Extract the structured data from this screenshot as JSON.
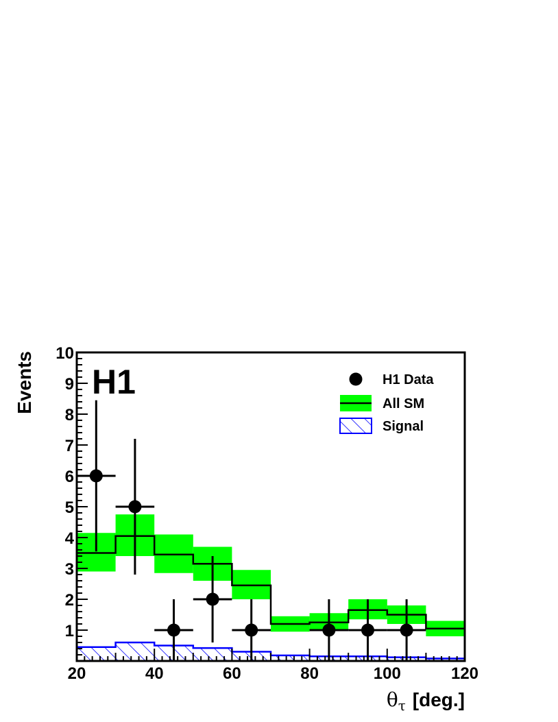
{
  "chart_data": {
    "type": "histogram",
    "experiment_label": "H1",
    "xlabel_symbol": "θ",
    "xlabel_subscript": "τ",
    "xlabel_unit": "[deg.]",
    "ylabel": "Events",
    "xlim": [
      20,
      120
    ],
    "ylim": [
      0,
      10
    ],
    "x_ticks": [
      20,
      40,
      60,
      80,
      100,
      120
    ],
    "y_ticks": [
      1,
      2,
      3,
      4,
      5,
      6,
      7,
      8,
      9,
      10
    ],
    "bin_edges": [
      20,
      30,
      40,
      50,
      60,
      70,
      80,
      90,
      100,
      110,
      120
    ],
    "legend": {
      "placement": "top-right",
      "entries": [
        {
          "key": "data",
          "label": "H1 Data"
        },
        {
          "key": "sm",
          "label": "All SM"
        },
        {
          "key": "signal",
          "label": "Signal"
        }
      ]
    },
    "series": [
      {
        "key": "sm",
        "kind": "step-with-band",
        "color": "#00ff00",
        "line_color": "#000000",
        "values": [
          3.5,
          4.05,
          3.45,
          3.15,
          2.45,
          1.2,
          1.25,
          1.65,
          1.5,
          1.05
        ],
        "band_low": [
          2.9,
          3.4,
          2.85,
          2.6,
          2.0,
          0.95,
          1.0,
          1.35,
          1.2,
          0.8
        ],
        "band_high": [
          4.15,
          4.75,
          4.1,
          3.7,
          2.95,
          1.45,
          1.55,
          2.0,
          1.8,
          1.3
        ]
      },
      {
        "key": "signal",
        "kind": "hatched-step",
        "color": "#0000ff",
        "values": [
          0.45,
          0.6,
          0.5,
          0.42,
          0.3,
          0.18,
          0.15,
          0.15,
          0.12,
          0.08
        ]
      },
      {
        "key": "data",
        "kind": "points",
        "color": "#000000",
        "x": [
          25,
          35,
          45,
          55,
          65,
          85,
          95,
          105
        ],
        "y": [
          6,
          5,
          1,
          2,
          1,
          1,
          1,
          1
        ],
        "err_low": [
          2.45,
          2.2,
          1.0,
          1.4,
          1.0,
          1.0,
          1.0,
          1.0
        ],
        "err_high": [
          2.45,
          2.2,
          1.0,
          1.4,
          1.0,
          1.0,
          1.0,
          1.0
        ],
        "x_halfwidth": 5
      }
    ]
  }
}
